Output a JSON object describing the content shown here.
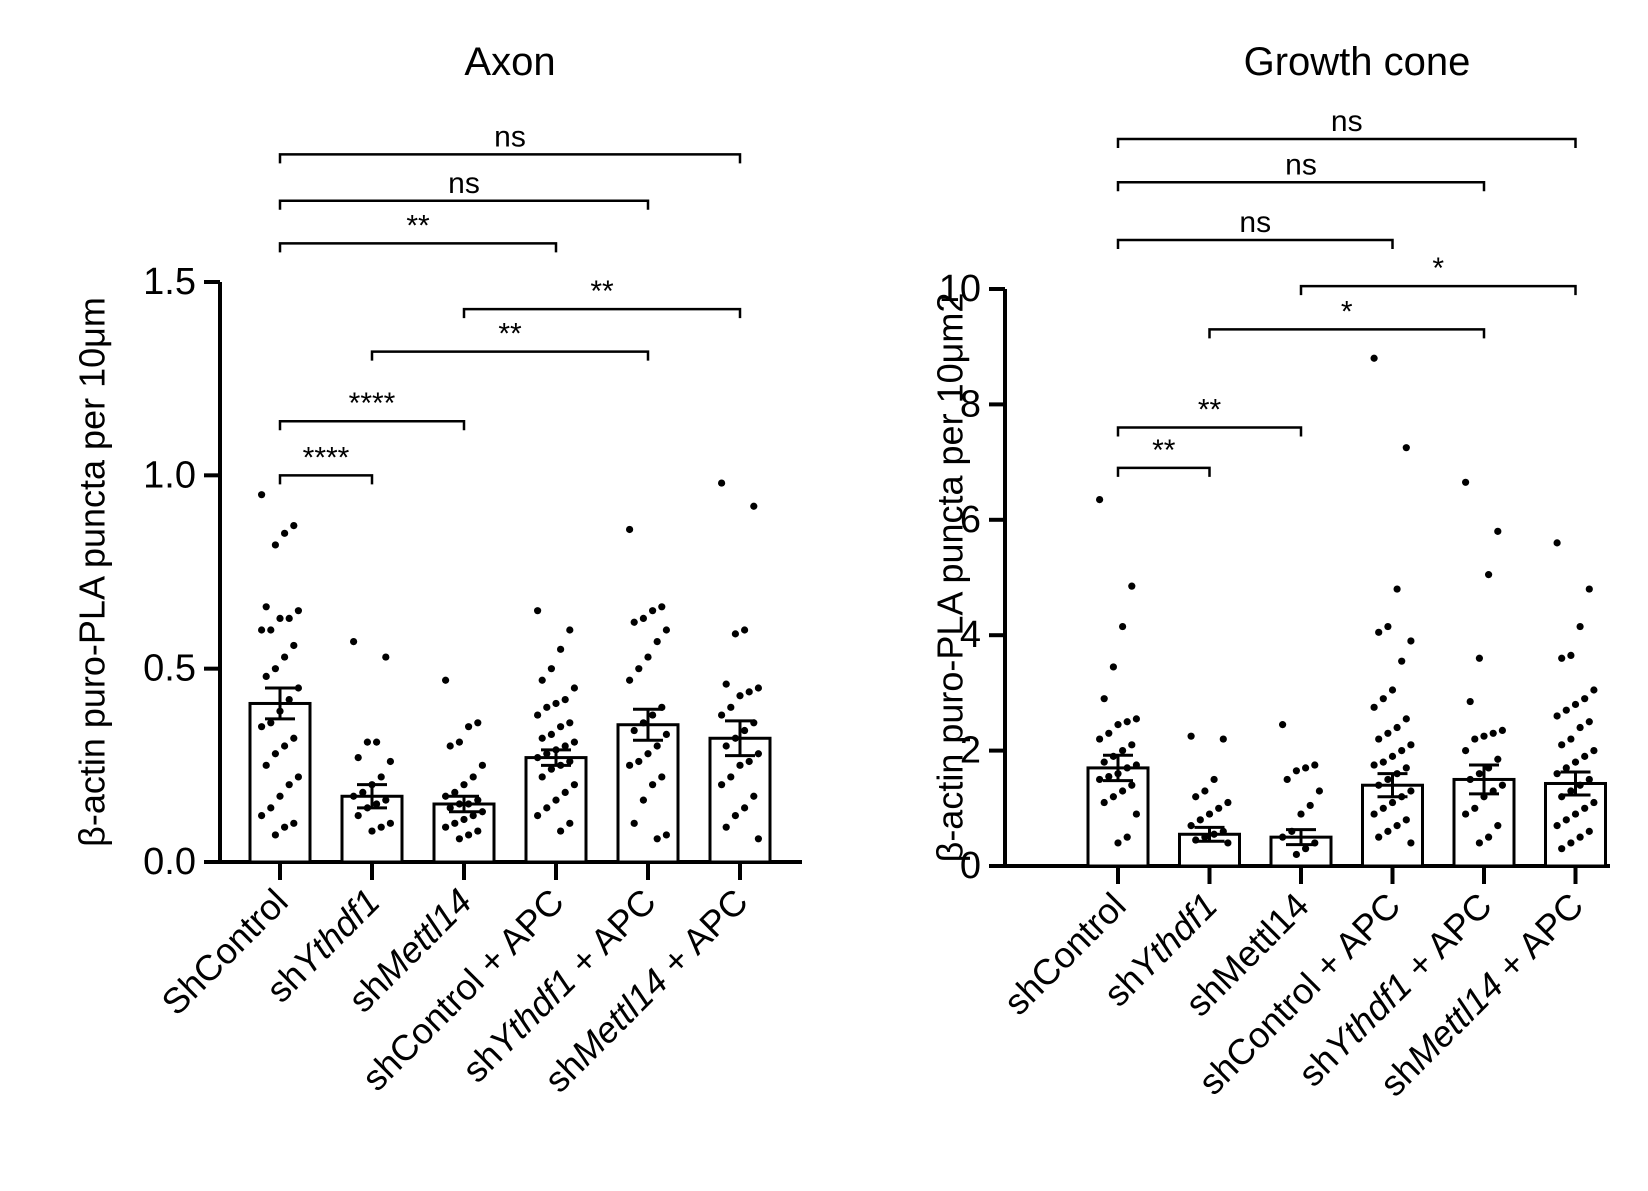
{
  "chart_data": [
    {
      "type": "bar",
      "title": "Axon",
      "ylabel": "β-actin puro-PLA puncta per 10μm",
      "xlabel": "",
      "ylim": [
        0,
        1.5
      ],
      "yticks": [
        0.0,
        0.5,
        1.0,
        1.5
      ],
      "ytick_labels": [
        "0.0",
        "0.5",
        "1.0",
        "1.5"
      ],
      "categories": [
        {
          "parts": [
            {
              "t": "ShControl",
              "i": false
            }
          ]
        },
        {
          "parts": [
            {
              "t": "sh",
              "i": false
            },
            {
              "t": "Ythdf1",
              "i": true
            }
          ]
        },
        {
          "parts": [
            {
              "t": "sh",
              "i": false
            },
            {
              "t": "Mettl14",
              "i": true
            }
          ]
        },
        {
          "parts": [
            {
              "t": "shControl + APC",
              "i": false
            }
          ]
        },
        {
          "parts": [
            {
              "t": "sh",
              "i": false
            },
            {
              "t": "Ythdf1",
              "i": true
            },
            {
              "t": " + APC",
              "i": false
            }
          ]
        },
        {
          "parts": [
            {
              "t": "sh",
              "i": false
            },
            {
              "t": "Mettl14",
              "i": true
            },
            {
              "t": " + APC",
              "i": false
            }
          ]
        }
      ],
      "means": [
        0.41,
        0.17,
        0.15,
        0.27,
        0.355,
        0.32
      ],
      "sem": [
        0.04,
        0.03,
        0.02,
        0.02,
        0.04,
        0.045
      ],
      "points": [
        [
          0.95,
          0.87,
          0.85,
          0.82,
          0.66,
          0.65,
          0.63,
          0.63,
          0.6,
          0.6,
          0.56,
          0.53,
          0.5,
          0.48,
          0.45,
          0.42,
          0.39,
          0.36,
          0.35,
          0.32,
          0.3,
          0.28,
          0.25,
          0.22,
          0.2,
          0.17,
          0.14,
          0.12,
          0.1,
          0.09,
          0.07
        ],
        [
          0.57,
          0.53,
          0.31,
          0.31,
          0.27,
          0.26,
          0.22,
          0.2,
          0.18,
          0.17,
          0.16,
          0.15,
          0.14,
          0.12,
          0.1,
          0.09,
          0.08
        ],
        [
          0.47,
          0.36,
          0.35,
          0.31,
          0.3,
          0.25,
          0.22,
          0.2,
          0.18,
          0.17,
          0.16,
          0.15,
          0.15,
          0.14,
          0.13,
          0.12,
          0.11,
          0.1,
          0.09,
          0.08,
          0.07,
          0.06
        ],
        [
          0.65,
          0.6,
          0.55,
          0.5,
          0.47,
          0.45,
          0.42,
          0.41,
          0.4,
          0.38,
          0.36,
          0.35,
          0.33,
          0.32,
          0.31,
          0.3,
          0.29,
          0.28,
          0.27,
          0.26,
          0.25,
          0.24,
          0.22,
          0.2,
          0.18,
          0.16,
          0.14,
          0.12,
          0.1,
          0.08
        ],
        [
          0.86,
          0.66,
          0.65,
          0.63,
          0.62,
          0.6,
          0.57,
          0.53,
          0.5,
          0.47,
          0.4,
          0.38,
          0.36,
          0.34,
          0.33,
          0.3,
          0.28,
          0.26,
          0.25,
          0.22,
          0.2,
          0.16,
          0.1,
          0.07,
          0.06
        ],
        [
          0.98,
          0.92,
          0.6,
          0.59,
          0.46,
          0.45,
          0.44,
          0.43,
          0.4,
          0.38,
          0.36,
          0.34,
          0.32,
          0.3,
          0.28,
          0.26,
          0.25,
          0.22,
          0.2,
          0.17,
          0.14,
          0.12,
          0.09,
          0.06
        ]
      ],
      "comparisons": [
        {
          "a": 0,
          "b": 5,
          "label": "ns",
          "level": 1.83
        },
        {
          "a": 0,
          "b": 4,
          "label": "ns",
          "level": 1.71
        },
        {
          "a": 0,
          "b": 3,
          "label": "**",
          "level": 1.6
        },
        {
          "a": 2,
          "b": 5,
          "label": "**",
          "level": 1.43
        },
        {
          "a": 1,
          "b": 4,
          "label": "**",
          "level": 1.32
        },
        {
          "a": 0,
          "b": 2,
          "label": "****",
          "level": 1.14
        },
        {
          "a": 0,
          "b": 1,
          "label": "****",
          "level": 1.0
        }
      ]
    },
    {
      "type": "bar",
      "title": "Growth cone",
      "ylabel": "β-actin puro-PLA puncta per 10μm2",
      "xlabel": "",
      "ylim": [
        0,
        10
      ],
      "yticks": [
        0,
        2,
        4,
        6,
        8,
        10
      ],
      "ytick_labels": [
        "0",
        "2",
        "4",
        "6",
        "8",
        "10"
      ],
      "categories": [
        {
          "parts": [
            {
              "t": "shControl",
              "i": false
            }
          ]
        },
        {
          "parts": [
            {
              "t": "sh",
              "i": false
            },
            {
              "t": "Ythdf1",
              "i": true
            }
          ]
        },
        {
          "parts": [
            {
              "t": "shMettl14",
              "i": false
            }
          ]
        },
        {
          "parts": [
            {
              "t": "shControl + APC",
              "i": false
            }
          ]
        },
        {
          "parts": [
            {
              "t": "sh",
              "i": false
            },
            {
              "t": "Ythdf1",
              "i": true
            },
            {
              "t": " + APC",
              "i": false
            }
          ]
        },
        {
          "parts": [
            {
              "t": "sh",
              "i": false
            },
            {
              "t": "Mettl14",
              "i": true
            },
            {
              "t": " + APC",
              "i": false
            }
          ]
        }
      ],
      "means": [
        1.7,
        0.55,
        0.5,
        1.4,
        1.5,
        1.43
      ],
      "sem": [
        0.22,
        0.12,
        0.13,
        0.2,
        0.25,
        0.2
      ],
      "points": [
        [
          6.35,
          4.85,
          4.15,
          3.45,
          2.9,
          2.55,
          2.5,
          2.45,
          2.3,
          2.2,
          2.1,
          2.0,
          1.9,
          1.8,
          1.75,
          1.7,
          1.6,
          1.55,
          1.5,
          1.4,
          1.3,
          1.2,
          1.1,
          0.9,
          0.5,
          0.4
        ],
        [
          2.25,
          2.2,
          1.5,
          1.3,
          1.2,
          1.1,
          1.0,
          0.9,
          0.8,
          0.7,
          0.6,
          0.55,
          0.5,
          0.45,
          0.4
        ],
        [
          2.45,
          1.75,
          1.7,
          1.65,
          1.5,
          1.3,
          1.05,
          0.9,
          0.6,
          0.5,
          0.4,
          0.3,
          0.2
        ],
        [
          8.8,
          7.25,
          4.8,
          4.15,
          4.05,
          3.9,
          3.55,
          3.05,
          2.9,
          2.75,
          2.55,
          2.4,
          2.3,
          2.2,
          2.1,
          2.0,
          1.9,
          1.8,
          1.75,
          1.7,
          1.6,
          1.5,
          1.4,
          1.3,
          1.2,
          1.1,
          1.0,
          0.9,
          0.8,
          0.7,
          0.6,
          0.5,
          0.4
        ],
        [
          6.65,
          5.8,
          5.05,
          3.6,
          2.85,
          2.35,
          2.3,
          2.25,
          2.2,
          2.0,
          1.85,
          1.7,
          1.6,
          1.5,
          1.4,
          1.3,
          1.2,
          1.0,
          0.9,
          0.7,
          0.5,
          0.4
        ],
        [
          5.6,
          4.8,
          4.15,
          3.65,
          3.6,
          3.05,
          2.9,
          2.8,
          2.7,
          2.6,
          2.5,
          2.4,
          2.2,
          2.1,
          2.0,
          1.9,
          1.8,
          1.7,
          1.6,
          1.5,
          1.4,
          1.3,
          1.2,
          1.1,
          1.0,
          0.9,
          0.8,
          0.7,
          0.6,
          0.5,
          0.4,
          0.3
        ]
      ],
      "comparisons": [
        {
          "a": 0,
          "b": 5,
          "label": "ns",
          "level": 12.6
        },
        {
          "a": 0,
          "b": 4,
          "label": "ns",
          "level": 11.85
        },
        {
          "a": 0,
          "b": 3,
          "label": "ns",
          "level": 10.85
        },
        {
          "a": 2,
          "b": 5,
          "label": "*",
          "level": 10.05
        },
        {
          "a": 1,
          "b": 4,
          "label": "*",
          "level": 9.3
        },
        {
          "a": 0,
          "b": 2,
          "label": "**",
          "level": 7.6
        },
        {
          "a": 0,
          "b": 1,
          "label": "**",
          "level": 6.9
        }
      ]
    }
  ]
}
